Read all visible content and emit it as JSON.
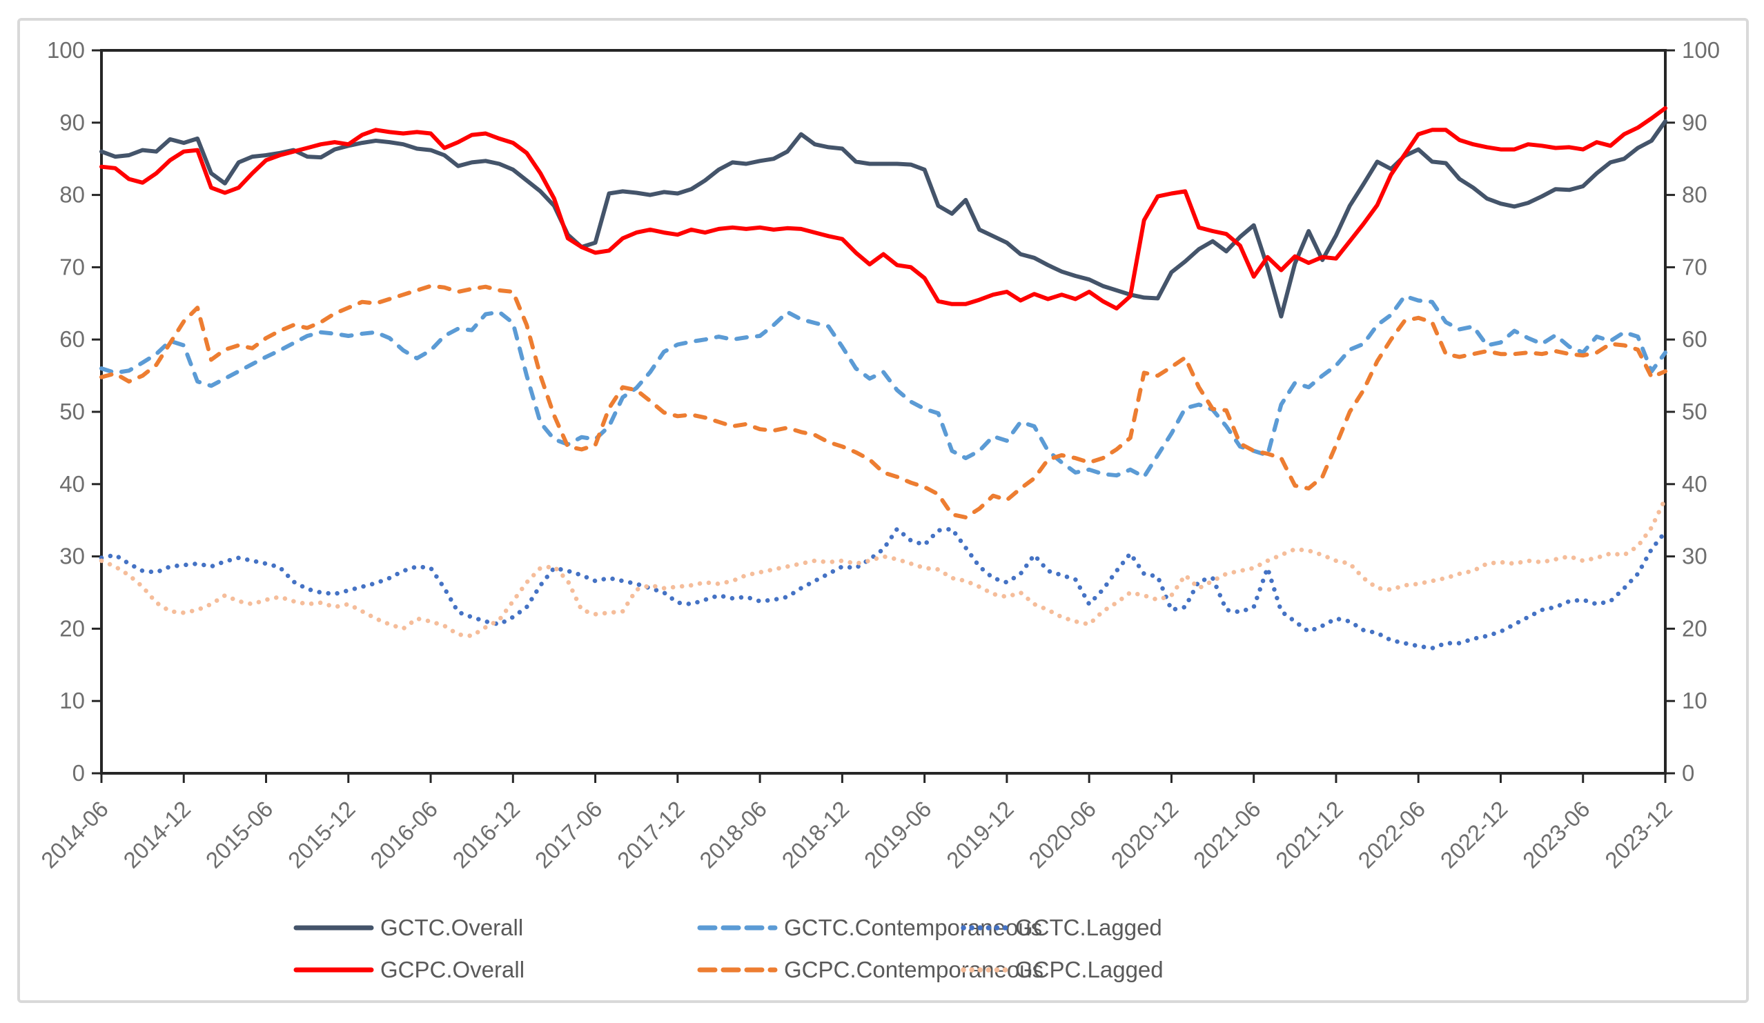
{
  "figure": {
    "background": "#ffffff",
    "border_color": "#d9d9d9",
    "axis_line_color": "#262626",
    "axis_label_color": "#6e6e6e",
    "legend_text_color": "#595959"
  },
  "axes": {
    "y_left": {
      "min": 0,
      "max": 100,
      "step": 10,
      "tick_labels": [
        "0",
        "10",
        "20",
        "30",
        "40",
        "50",
        "60",
        "70",
        "80",
        "90",
        "100"
      ]
    },
    "y_right": {
      "min": 0,
      "max": 100,
      "step": 10,
      "tick_labels": [
        "0",
        "10",
        "20",
        "30",
        "40",
        "50",
        "60",
        "70",
        "80",
        "90",
        "100"
      ]
    },
    "x": {
      "tick_labels": [
        "2014-06",
        "2014-12",
        "2015-06",
        "2015-12",
        "2016-06",
        "2016-12",
        "2017-06",
        "2017-12",
        "2018-06",
        "2018-12",
        "2019-06",
        "2019-12",
        "2020-06",
        "2020-12",
        "2021-06",
        "2021-12",
        "2022-06",
        "2022-12",
        "2023-06",
        "2023-12"
      ]
    }
  },
  "legend": {
    "rows": [
      [
        "GCTC.Overall",
        "GCTC.Contemporaneous",
        "GCTC.Lagged"
      ],
      [
        "GCPC.Overall",
        "GCPC.Contemporaneous",
        "GCPC.Lagged"
      ]
    ]
  },
  "chart_data": {
    "type": "line",
    "title": "",
    "xlabel": "",
    "ylabel": "",
    "ylim": [
      0,
      100
    ],
    "grid": false,
    "legend_position": "bottom",
    "x_tick_every": 6,
    "x": [
      "2014-06",
      "2014-07",
      "2014-08",
      "2014-09",
      "2014-10",
      "2014-11",
      "2014-12",
      "2015-01",
      "2015-02",
      "2015-03",
      "2015-04",
      "2015-05",
      "2015-06",
      "2015-07",
      "2015-08",
      "2015-09",
      "2015-10",
      "2015-11",
      "2015-12",
      "2016-01",
      "2016-02",
      "2016-03",
      "2016-04",
      "2016-05",
      "2016-06",
      "2016-07",
      "2016-08",
      "2016-09",
      "2016-10",
      "2016-11",
      "2016-12",
      "2017-01",
      "2017-02",
      "2017-03",
      "2017-04",
      "2017-05",
      "2017-06",
      "2017-07",
      "2017-08",
      "2017-09",
      "2017-10",
      "2017-11",
      "2017-12",
      "2018-01",
      "2018-02",
      "2018-03",
      "2018-04",
      "2018-05",
      "2018-06",
      "2018-07",
      "2018-08",
      "2018-09",
      "2018-10",
      "2018-11",
      "2018-12",
      "2019-01",
      "2019-02",
      "2019-03",
      "2019-04",
      "2019-05",
      "2019-06",
      "2019-07",
      "2019-08",
      "2019-09",
      "2019-10",
      "2019-11",
      "2019-12",
      "2020-01",
      "2020-02",
      "2020-03",
      "2020-04",
      "2020-05",
      "2020-06",
      "2020-07",
      "2020-08",
      "2020-09",
      "2020-10",
      "2020-11",
      "2020-12",
      "2021-01",
      "2021-02",
      "2021-03",
      "2021-04",
      "2021-05",
      "2021-06",
      "2021-07",
      "2021-08",
      "2021-09",
      "2021-10",
      "2021-11",
      "2021-12",
      "2022-01",
      "2022-02",
      "2022-03",
      "2022-04",
      "2022-05",
      "2022-06",
      "2022-07",
      "2022-08",
      "2022-09",
      "2022-10",
      "2022-11",
      "2022-12",
      "2023-01",
      "2023-02",
      "2023-03",
      "2023-04",
      "2023-05",
      "2023-06",
      "2023-07",
      "2023-08",
      "2023-09",
      "2023-10",
      "2023-11",
      "2023-12"
    ],
    "series": [
      {
        "name": "GCTC.Overall",
        "color": "#44546A",
        "style": "solid",
        "values": [
          86,
          85.3,
          85.5,
          86.2,
          86,
          87.7,
          87.2,
          87.8,
          83,
          81.6,
          84.5,
          85.3,
          85.5,
          85.8,
          86.2,
          85.3,
          85.2,
          86.3,
          86.8,
          87.2,
          87.5,
          87.3,
          87,
          86.4,
          86.2,
          85.5,
          84,
          84.5,
          84.7,
          84.3,
          83.5,
          82,
          80.5,
          78.5,
          74.5,
          72.8,
          73.4,
          80.2,
          80.5,
          80.3,
          80,
          80.4,
          80.2,
          80.8,
          82,
          83.5,
          84.5,
          84.3,
          84.7,
          85,
          86,
          88.4,
          87,
          86.6,
          86.4,
          84.6,
          84.3,
          84.3,
          84.3,
          84.2,
          83.5,
          78.5,
          77.4,
          79.3,
          75.2,
          74.3,
          73.4,
          71.8,
          71.3,
          70.3,
          69.4,
          68.8,
          68.3,
          67.4,
          66.8,
          66.2,
          65.8,
          65.7,
          69.3,
          70.8,
          72.5,
          73.6,
          72.2,
          74.2,
          75.8,
          70,
          63.2,
          70.5,
          75,
          71,
          74.4,
          78.5,
          81.5,
          84.6,
          83.6,
          85.4,
          86.3,
          84.6,
          84.4,
          82.2,
          81,
          79.5,
          78.8,
          78.4,
          78.9,
          79.8,
          80.8,
          80.7,
          81.2,
          83,
          84.5,
          85,
          86.5,
          87.5,
          90.2
        ]
      },
      {
        "name": "GCPC.Overall",
        "color": "#FF0000",
        "style": "solid",
        "values": [
          83.9,
          83.7,
          82.2,
          81.7,
          83,
          84.8,
          86,
          86.2,
          81,
          80.3,
          81,
          83,
          84.8,
          85.5,
          86,
          86.5,
          87,
          87.3,
          87,
          88.3,
          89,
          88.7,
          88.5,
          88.7,
          88.5,
          86.5,
          87.3,
          88.3,
          88.5,
          87.8,
          87.2,
          85.8,
          83,
          79.5,
          74,
          72.8,
          72,
          72.3,
          74,
          74.8,
          75.2,
          74.8,
          74.5,
          75.2,
          74.8,
          75.3,
          75.5,
          75.3,
          75.5,
          75.2,
          75.4,
          75.3,
          74.8,
          74.3,
          73.9,
          72,
          70.4,
          71.8,
          70.3,
          70,
          68.5,
          65.3,
          64.9,
          64.9,
          65.5,
          66.2,
          66.6,
          65.4,
          66.3,
          65.6,
          66.2,
          65.6,
          66.6,
          65.3,
          64.3,
          66,
          76.5,
          79.8,
          80.2,
          80.5,
          75.5,
          75,
          74.6,
          73,
          68.7,
          71.4,
          69.6,
          71.5,
          70.6,
          71.4,
          71.2,
          73.6,
          76,
          78.6,
          82.8,
          85.6,
          88.4,
          89,
          89,
          87.6,
          87,
          86.6,
          86.3,
          86.3,
          87,
          86.8,
          86.5,
          86.6,
          86.3,
          87.3,
          86.8,
          88.4,
          89.3,
          90.6,
          92
        ]
      },
      {
        "name": "GCTC.Contemporaneous",
        "color": "#5B9BD5",
        "style": "dashed",
        "values": [
          56,
          55.4,
          55.7,
          56.8,
          58,
          59.8,
          59.2,
          54.2,
          53.6,
          54.6,
          55.6,
          56.6,
          57.6,
          58.5,
          59.5,
          60.5,
          61,
          60.8,
          60.5,
          60.8,
          61,
          60.2,
          58.5,
          57.4,
          58.5,
          60.5,
          61.5,
          61.3,
          63.5,
          63.8,
          62.3,
          55,
          48.5,
          46.2,
          45.5,
          46.5,
          46.2,
          48,
          52,
          53.3,
          55.5,
          58.3,
          59.3,
          59.7,
          60,
          60.4,
          60,
          60.3,
          60.5,
          62,
          63.8,
          62.8,
          62.3,
          61.8,
          59,
          56,
          54.6,
          55.5,
          53,
          51.4,
          50.4,
          49.8,
          44.6,
          43.6,
          44.6,
          46.6,
          46,
          48.6,
          48,
          44.6,
          43,
          41.6,
          42,
          41.4,
          41.2,
          42,
          41,
          44,
          47,
          50.5,
          51,
          50.3,
          48,
          45.2,
          44.6,
          44,
          51,
          54,
          53.4,
          55,
          56.4,
          58.6,
          59.4,
          62,
          63.4,
          66,
          65.4,
          65.2,
          62.4,
          61.4,
          61.8,
          59.2,
          59.6,
          61.2,
          60.2,
          59.4,
          60.6,
          59,
          58.2,
          60.4,
          59.8,
          61,
          60.4,
          55.6,
          58.2
        ]
      },
      {
        "name": "GCPC.Contemporaneous",
        "color": "#ED7D31",
        "style": "dashed",
        "values": [
          54.8,
          55.3,
          54.2,
          55,
          56.5,
          59.5,
          62.5,
          64.4,
          57.2,
          58.6,
          59.2,
          58.8,
          60.2,
          61.2,
          62,
          61.6,
          62.4,
          63.6,
          64.4,
          65.2,
          65,
          65.6,
          66.2,
          66.8,
          67.4,
          67.2,
          66.6,
          67,
          67.3,
          66.8,
          66.6,
          62,
          55,
          49.5,
          45.2,
          44.8,
          45.4,
          50.5,
          53.4,
          53,
          51.5,
          49.9,
          49.4,
          49.6,
          49.2,
          48.6,
          48,
          48.3,
          47.6,
          47.4,
          47.8,
          47.2,
          46.8,
          45.8,
          45.2,
          44.4,
          43.4,
          41.6,
          41,
          40.2,
          39.6,
          38.6,
          35.8,
          35.4,
          36.6,
          38.4,
          37.8,
          39.4,
          40.8,
          43.4,
          44,
          43.6,
          43,
          43.6,
          44.8,
          46.4,
          55.4,
          55,
          56.2,
          57.5,
          53.4,
          50.4,
          50.2,
          45.6,
          44.6,
          44.2,
          43.6,
          39.8,
          39.4,
          41,
          45.4,
          50,
          53,
          57,
          60,
          62.6,
          63,
          62.4,
          58,
          57.6,
          58,
          58.4,
          58,
          58,
          58.2,
          58,
          58.4,
          58,
          57.8,
          58.2,
          59.4,
          59.2,
          58.6,
          54.8,
          55.6
        ]
      },
      {
        "name": "GCTC.Lagged",
        "color": "#4472C4",
        "style": "dotted",
        "values": [
          29.8,
          30.2,
          29,
          28,
          27.8,
          28.6,
          28.8,
          29,
          28.6,
          29.3,
          29.8,
          29.4,
          29,
          28.5,
          26.5,
          25.5,
          25,
          24.8,
          25.3,
          25.8,
          26.3,
          27,
          28,
          28.6,
          28.4,
          25.6,
          22.3,
          21.6,
          21,
          20.6,
          21.6,
          23,
          26,
          28.4,
          28,
          27.4,
          26.6,
          27,
          26.6,
          26.2,
          25.6,
          25,
          23.6,
          23.4,
          24,
          24.6,
          24.2,
          24.4,
          23.8,
          24,
          24.4,
          25.6,
          26.6,
          27.6,
          28.6,
          28.4,
          29.6,
          31,
          33.8,
          32.2,
          31.6,
          33.6,
          33.8,
          31.2,
          28.6,
          27,
          26.4,
          27.6,
          30.2,
          28,
          27.4,
          26.8,
          23.4,
          25.4,
          28,
          30.4,
          27.6,
          27.2,
          22.6,
          23,
          26.6,
          27,
          22.6,
          22.3,
          23,
          28.4,
          22.4,
          21,
          19.6,
          20.4,
          21.4,
          21,
          19.8,
          19.4,
          18.4,
          18,
          17.6,
          17.3,
          18,
          18,
          18.6,
          19,
          19.6,
          20.6,
          21.6,
          22.6,
          23,
          23.8,
          24,
          23.4,
          23.8,
          25.6,
          27.6,
          31,
          33.4
        ]
      },
      {
        "name": "GCPC.Lagged",
        "color": "#F5BD9A",
        "style": "dotted",
        "values": [
          29.4,
          28.6,
          27.4,
          25.8,
          23.6,
          22.4,
          22.2,
          22.6,
          23.4,
          24.6,
          23.8,
          23.4,
          24,
          24.4,
          23.8,
          23.4,
          23.6,
          23,
          23.4,
          22.4,
          21.4,
          20.6,
          20,
          21.4,
          21,
          20.4,
          19.2,
          19,
          20.2,
          21.2,
          23.8,
          26.4,
          28.4,
          28.6,
          26.6,
          22.6,
          22,
          22.2,
          22.4,
          25.4,
          26,
          25.6,
          25.8,
          26,
          26.4,
          26.2,
          26.6,
          27.4,
          27.8,
          28.2,
          28.6,
          29,
          29.4,
          29.2,
          29.4,
          29,
          29.4,
          30,
          29.6,
          29,
          28.4,
          28.2,
          27,
          26.6,
          25.8,
          24.8,
          24.4,
          25,
          23.4,
          22.6,
          21.6,
          21,
          20.6,
          22.4,
          23.6,
          25,
          24.6,
          24,
          24.6,
          27.4,
          25.6,
          26.6,
          27.6,
          28,
          28.4,
          29.4,
          30.2,
          31,
          30.8,
          30.2,
          29.4,
          29,
          27,
          25.6,
          25.4,
          26,
          26.2,
          26.6,
          27,
          27.6,
          28,
          29,
          29.2,
          29,
          29.4,
          29.2,
          29.6,
          30,
          29.4,
          29.8,
          30.4,
          30.2,
          31.4,
          34,
          38
        ]
      }
    ]
  }
}
